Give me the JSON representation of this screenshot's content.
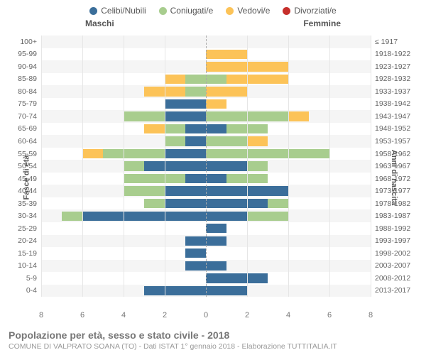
{
  "legend": [
    {
      "label": "Celibi/Nubili",
      "color": "#3b6e9a"
    },
    {
      "label": "Coniugati/e",
      "color": "#a8cd8e"
    },
    {
      "label": "Vedovi/e",
      "color": "#fcc358"
    },
    {
      "label": "Divorziati/e",
      "color": "#c62f2b"
    }
  ],
  "headers": {
    "left": "Maschi",
    "right": "Femmine"
  },
  "axis": {
    "y_left_title": "Fasce di età",
    "y_right_title": "Anni di nascita",
    "x_ticks": [
      8,
      6,
      4,
      2,
      0,
      2,
      4,
      6,
      8
    ],
    "x_max": 8
  },
  "colors": {
    "celibi": "#3b6e9a",
    "coniugati": "#a8cd8e",
    "vedovi": "#fcc358",
    "divorziati": "#c62f2b",
    "grid": "#e6e6e6",
    "center": "#aaaaaa",
    "alt_row": "#f5f5f5"
  },
  "rows": [
    {
      "age": "100+",
      "birth": "≤ 1917",
      "m": [
        0,
        0,
        0,
        0
      ],
      "f": [
        0,
        0,
        0,
        0
      ]
    },
    {
      "age": "95-99",
      "birth": "1918-1922",
      "m": [
        0,
        0,
        0,
        0
      ],
      "f": [
        0,
        0,
        2,
        0
      ]
    },
    {
      "age": "90-94",
      "birth": "1923-1927",
      "m": [
        0,
        0,
        0,
        0
      ],
      "f": [
        0,
        0,
        4,
        0
      ]
    },
    {
      "age": "85-89",
      "birth": "1928-1932",
      "m": [
        0,
        1,
        1,
        0
      ],
      "f": [
        0,
        1,
        3,
        0
      ]
    },
    {
      "age": "80-84",
      "birth": "1933-1937",
      "m": [
        0,
        1,
        2,
        0
      ],
      "f": [
        0,
        0,
        2,
        0
      ]
    },
    {
      "age": "75-79",
      "birth": "1938-1942",
      "m": [
        2,
        0,
        0,
        0
      ],
      "f": [
        0,
        0,
        1,
        0
      ]
    },
    {
      "age": "70-74",
      "birth": "1943-1947",
      "m": [
        2,
        2,
        0,
        0
      ],
      "f": [
        0,
        4,
        1,
        0
      ]
    },
    {
      "age": "65-69",
      "birth": "1948-1952",
      "m": [
        1,
        1,
        1,
        0
      ],
      "f": [
        1,
        2,
        0,
        0
      ]
    },
    {
      "age": "60-64",
      "birth": "1953-1957",
      "m": [
        1,
        1,
        0,
        0
      ],
      "f": [
        0,
        2,
        1,
        0
      ]
    },
    {
      "age": "55-59",
      "birth": "1958-1962",
      "m": [
        2,
        3,
        1,
        0
      ],
      "f": [
        0,
        6,
        0,
        0
      ]
    },
    {
      "age": "50-54",
      "birth": "1963-1967",
      "m": [
        3,
        1,
        0,
        0
      ],
      "f": [
        2,
        1,
        0,
        0
      ]
    },
    {
      "age": "45-49",
      "birth": "1968-1972",
      "m": [
        1,
        3,
        0,
        0
      ],
      "f": [
        1,
        2,
        0,
        0
      ]
    },
    {
      "age": "40-44",
      "birth": "1973-1977",
      "m": [
        2,
        2,
        0,
        0
      ],
      "f": [
        4,
        0,
        0,
        0
      ]
    },
    {
      "age": "35-39",
      "birth": "1978-1982",
      "m": [
        2,
        1,
        0,
        0
      ],
      "f": [
        3,
        1,
        0,
        0
      ]
    },
    {
      "age": "30-34",
      "birth": "1983-1987",
      "m": [
        6,
        1,
        0,
        0
      ],
      "f": [
        2,
        2,
        0,
        0
      ]
    },
    {
      "age": "25-29",
      "birth": "1988-1992",
      "m": [
        0,
        0,
        0,
        0
      ],
      "f": [
        1,
        0,
        0,
        0
      ]
    },
    {
      "age": "20-24",
      "birth": "1993-1997",
      "m": [
        1,
        0,
        0,
        0
      ],
      "f": [
        1,
        0,
        0,
        0
      ]
    },
    {
      "age": "15-19",
      "birth": "1998-2002",
      "m": [
        1,
        0,
        0,
        0
      ],
      "f": [
        0,
        0,
        0,
        0
      ]
    },
    {
      "age": "10-14",
      "birth": "2003-2007",
      "m": [
        1,
        0,
        0,
        0
      ],
      "f": [
        1,
        0,
        0,
        0
      ]
    },
    {
      "age": "5-9",
      "birth": "2008-2012",
      "m": [
        0,
        0,
        0,
        0
      ],
      "f": [
        3,
        0,
        0,
        0
      ]
    },
    {
      "age": "0-4",
      "birth": "2013-2017",
      "m": [
        3,
        0,
        0,
        0
      ],
      "f": [
        2,
        0,
        0,
        0
      ]
    }
  ],
  "footer": {
    "title": "Popolazione per età, sesso e stato civile - 2018",
    "subtitle": "COMUNE DI VALPRATO SOANA (TO) - Dati ISTAT 1° gennaio 2018 - Elaborazione TUTTITALIA.IT"
  }
}
